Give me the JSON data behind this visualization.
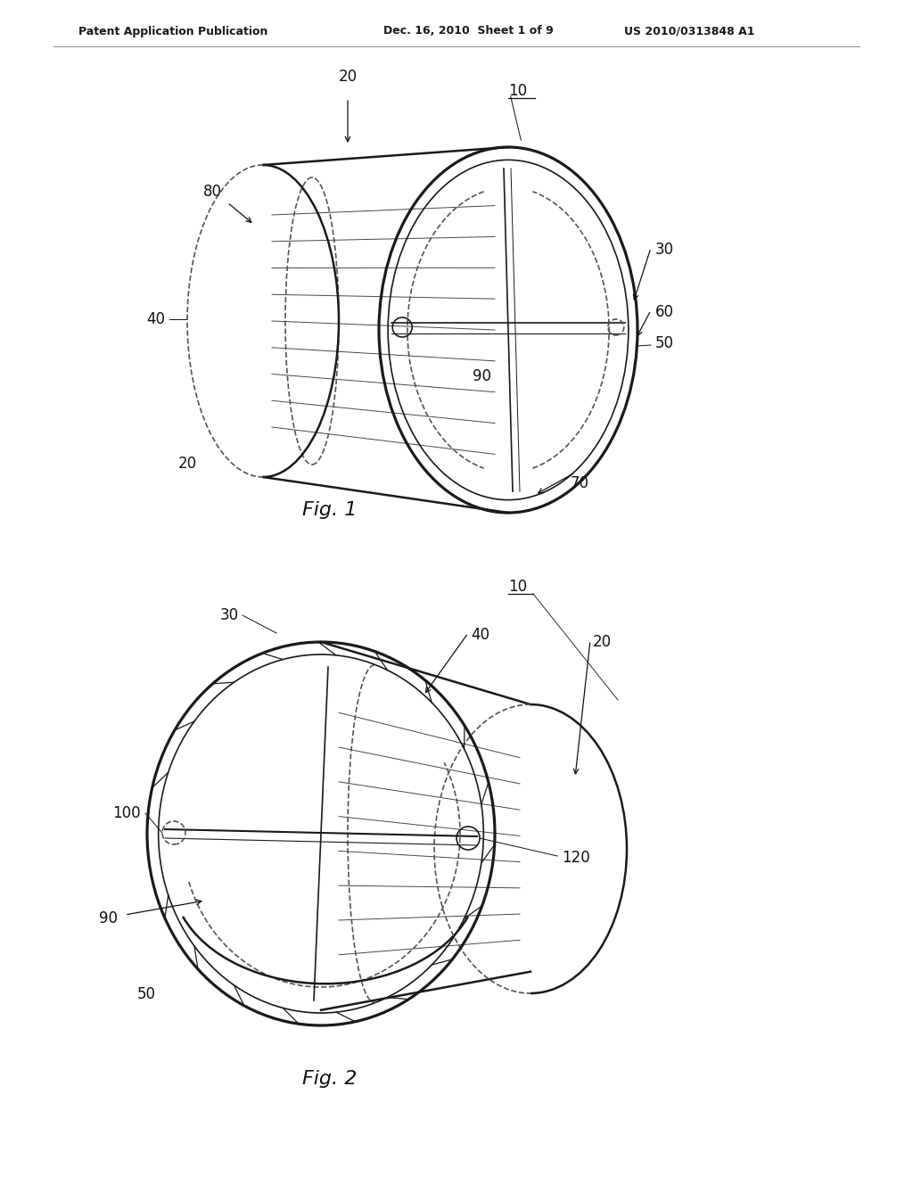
{
  "bg_color": "#ffffff",
  "line_color": "#1a1a1a",
  "dashed_color": "#555555",
  "header_left": "Patent Application Publication",
  "header_mid": "Dec. 16, 2010  Sheet 1 of 9",
  "header_right": "US 2010/0313848 A1",
  "fig1_caption": "Fig. 1",
  "fig2_caption": "Fig. 2"
}
